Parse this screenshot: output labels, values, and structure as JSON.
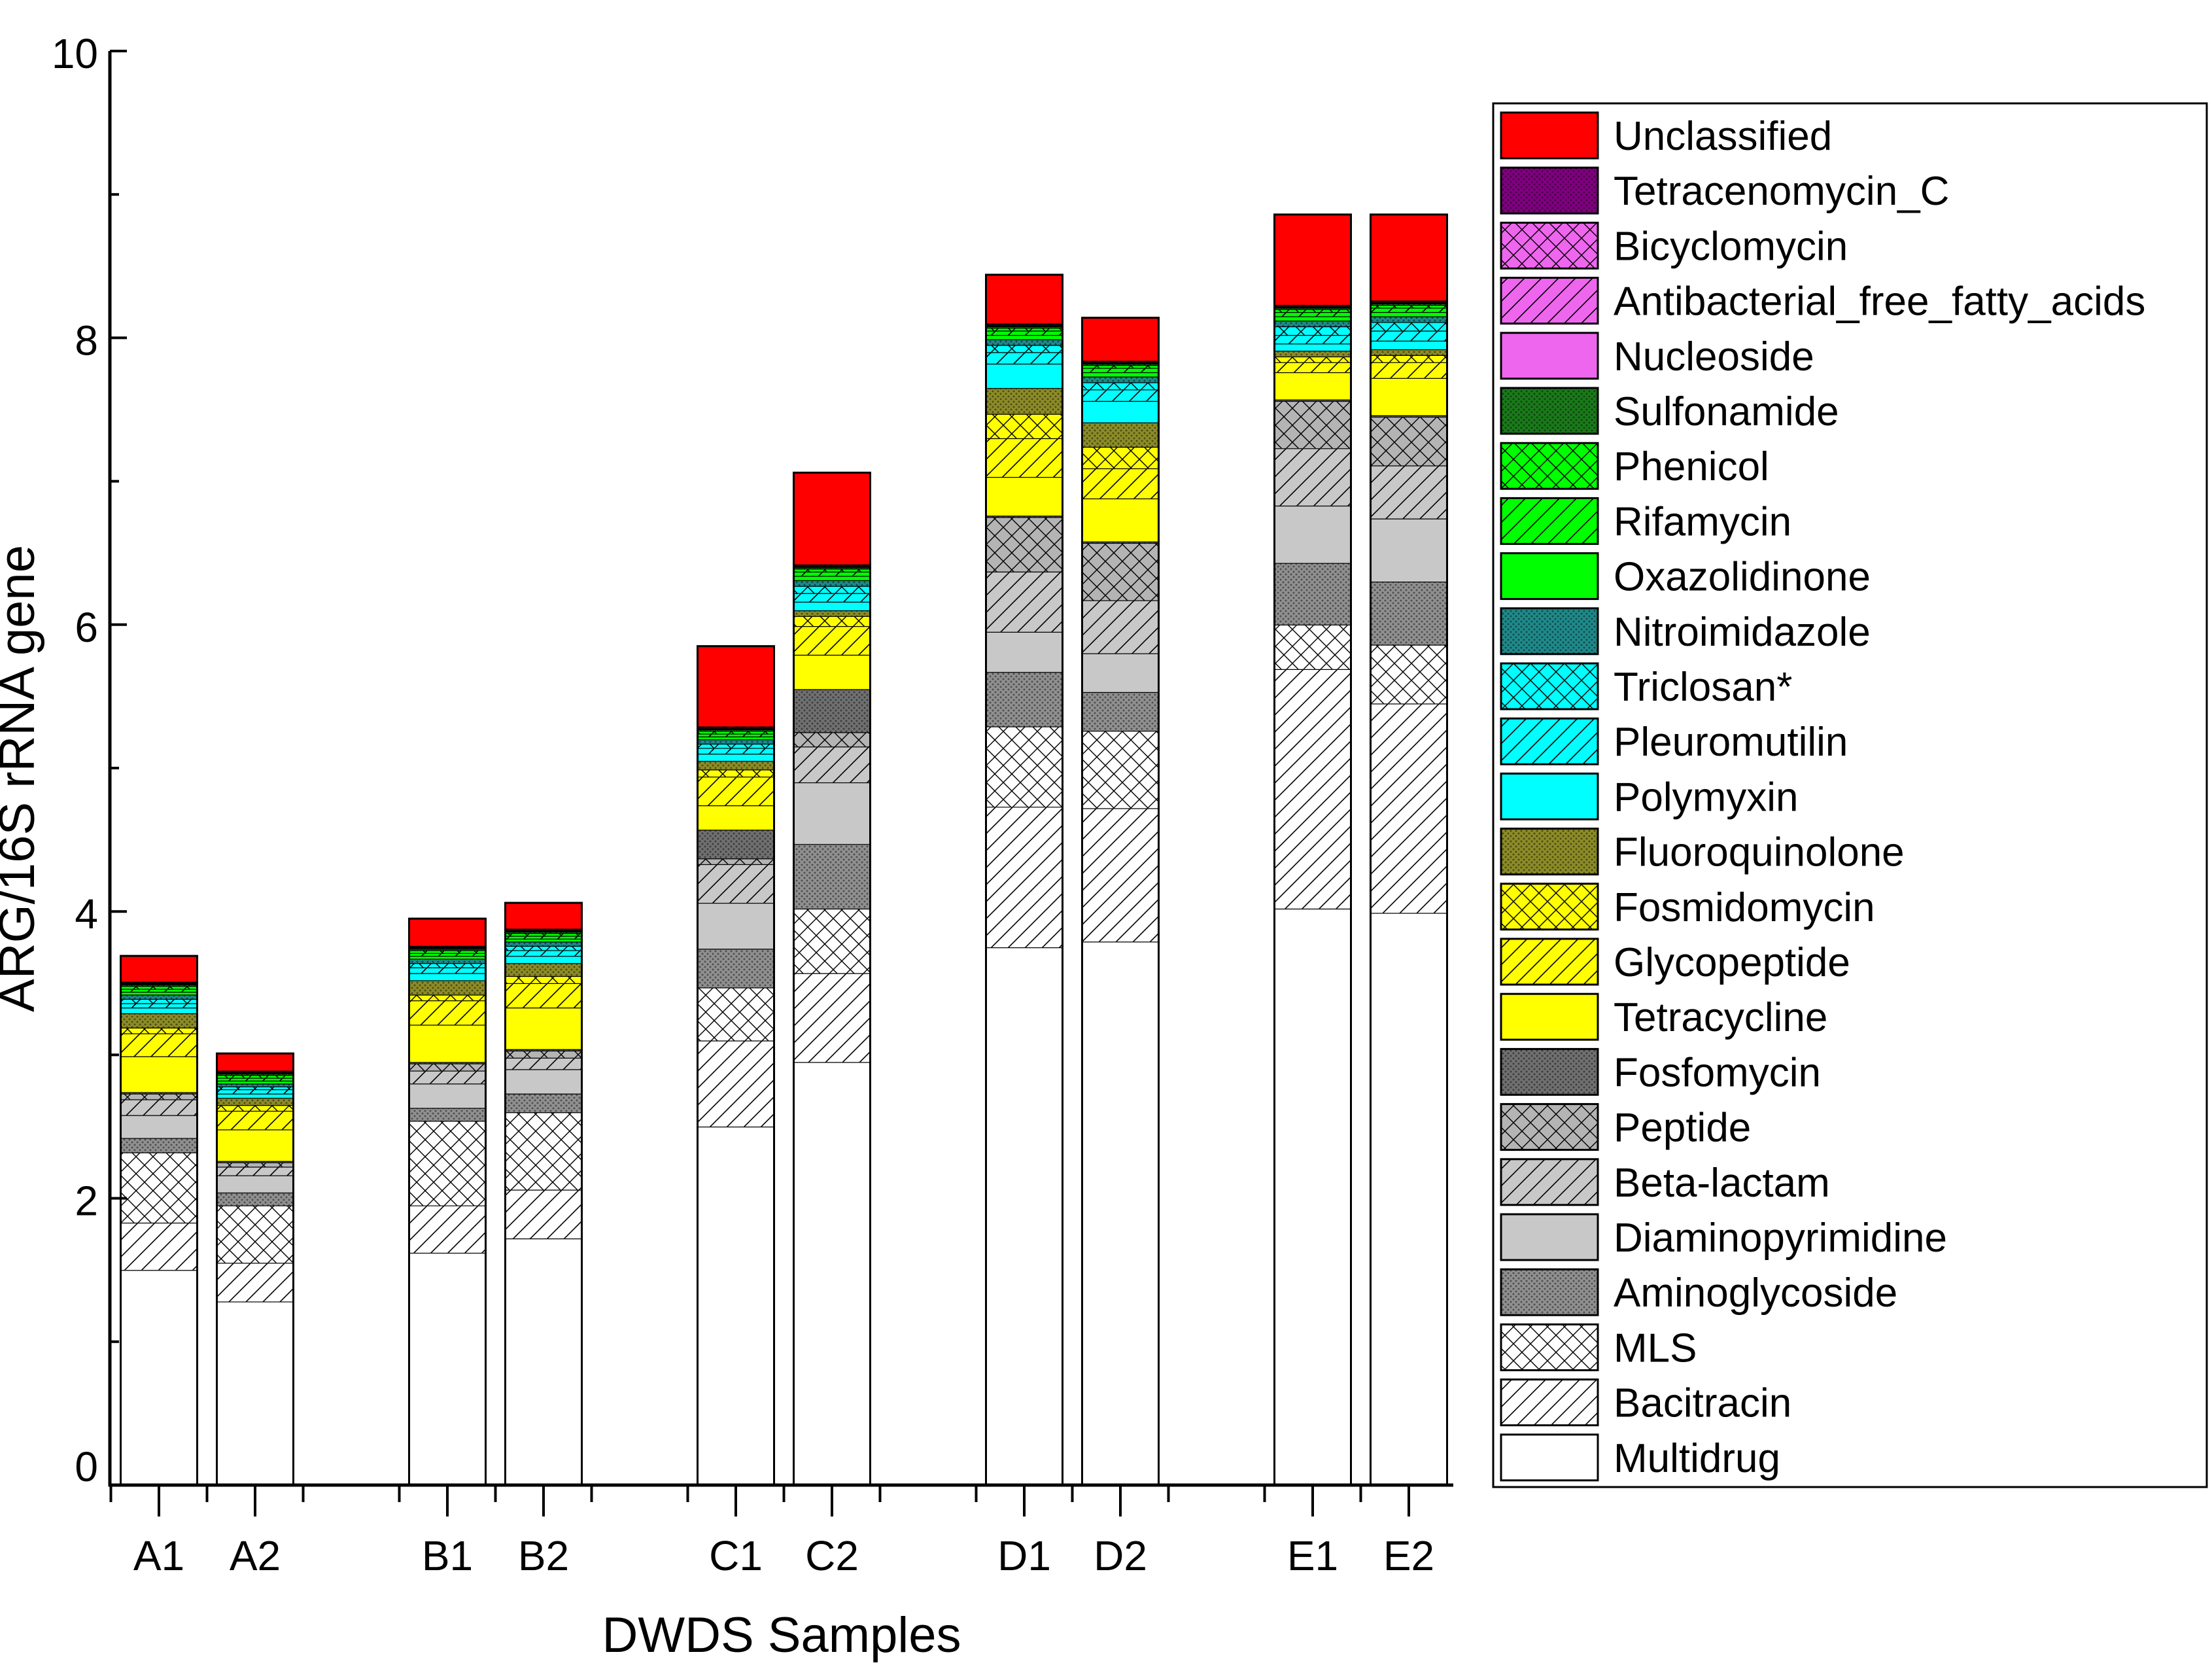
{
  "chart_data": {
    "type": "bar",
    "stacked": true,
    "title": "",
    "xlabel": "DWDS Samples",
    "ylabel": "ARG/16S rRNA gene",
    "ylim": [
      0,
      10
    ],
    "yticks": [
      0,
      2,
      4,
      6,
      8,
      10
    ],
    "grid": false,
    "legend_position": "right",
    "categories": [
      "A1",
      "A2",
      "B1",
      "B2",
      "C1",
      "C2",
      "D1",
      "D2",
      "E1",
      "E2"
    ],
    "category_groups": [
      [
        "A1",
        "A2"
      ],
      [
        "B1",
        "B2"
      ],
      [
        "C1",
        "C2"
      ],
      [
        "D1",
        "D2"
      ],
      [
        "E1",
        "E2"
      ]
    ],
    "series": [
      {
        "name": "Multidrug",
        "color": "#ffffff",
        "pattern": "none",
        "values": [
          1.5,
          1.28,
          1.62,
          1.72,
          2.5,
          2.95,
          3.75,
          3.79,
          4.02,
          3.99
        ]
      },
      {
        "name": "Bacitracin",
        "color": "#ffffff",
        "pattern": "hatch",
        "values": [
          0.33,
          0.27,
          0.33,
          0.34,
          0.6,
          0.62,
          0.98,
          0.93,
          1.67,
          1.46
        ]
      },
      {
        "name": "MLS",
        "color": "#ffffff",
        "pattern": "cross",
        "values": [
          0.49,
          0.4,
          0.59,
          0.54,
          0.37,
          0.45,
          0.56,
          0.54,
          0.31,
          0.41
        ]
      },
      {
        "name": "Aminoglycoside",
        "color": "#909090",
        "pattern": "dots",
        "values": [
          0.1,
          0.09,
          0.09,
          0.13,
          0.27,
          0.45,
          0.38,
          0.27,
          0.43,
          0.44
        ]
      },
      {
        "name": "Diaminopyrimidine",
        "color": "#c8c8c8",
        "pattern": "none",
        "values": [
          0.16,
          0.12,
          0.17,
          0.17,
          0.32,
          0.43,
          0.28,
          0.27,
          0.4,
          0.44
        ]
      },
      {
        "name": "Beta-lactam",
        "color": "#c8c8c8",
        "pattern": "hatch",
        "values": [
          0.11,
          0.06,
          0.09,
          0.08,
          0.27,
          0.25,
          0.42,
          0.37,
          0.4,
          0.37
        ]
      },
      {
        "name": "Peptide",
        "color": "#b4b4b4",
        "pattern": "cross",
        "values": [
          0.04,
          0.03,
          0.05,
          0.05,
          0.04,
          0.1,
          0.38,
          0.4,
          0.33,
          0.34
        ]
      },
      {
        "name": "Fosfomycin",
        "color": "#707070",
        "pattern": "dots",
        "values": [
          0.01,
          0.01,
          0.01,
          0.01,
          0.2,
          0.3,
          0.01,
          0.01,
          0.01,
          0.01
        ]
      },
      {
        "name": "Tetracycline",
        "color": "#ffff00",
        "pattern": "none",
        "values": [
          0.25,
          0.22,
          0.26,
          0.29,
          0.17,
          0.24,
          0.27,
          0.3,
          0.19,
          0.26
        ]
      },
      {
        "name": "Glycopeptide",
        "color": "#ffff00",
        "pattern": "hatch",
        "values": [
          0.16,
          0.13,
          0.17,
          0.17,
          0.2,
          0.2,
          0.27,
          0.21,
          0.07,
          0.11
        ]
      },
      {
        "name": "Fosmidomycin",
        "color": "#ffff00",
        "pattern": "cross",
        "values": [
          0.04,
          0.04,
          0.04,
          0.05,
          0.05,
          0.07,
          0.17,
          0.15,
          0.04,
          0.05
        ]
      },
      {
        "name": "Fluoroquinolone",
        "color": "#8c8c28",
        "pattern": "dots",
        "values": [
          0.1,
          0.05,
          0.1,
          0.09,
          0.06,
          0.04,
          0.18,
          0.17,
          0.04,
          0.04
        ]
      },
      {
        "name": "Polymyxin",
        "color": "#00ffff",
        "pattern": "none",
        "values": [
          0.04,
          0.03,
          0.05,
          0.05,
          0.05,
          0.06,
          0.17,
          0.15,
          0.05,
          0.06
        ]
      },
      {
        "name": "Pleuromutilin",
        "color": "#00ffff",
        "pattern": "hatch",
        "values": [
          0.03,
          0.03,
          0.04,
          0.04,
          0.04,
          0.06,
          0.08,
          0.08,
          0.06,
          0.07
        ]
      },
      {
        "name": "Triclosan*",
        "color": "#00ffff",
        "pattern": "cross",
        "values": [
          0.03,
          0.02,
          0.03,
          0.03,
          0.03,
          0.05,
          0.05,
          0.05,
          0.06,
          0.06
        ]
      },
      {
        "name": "Nitroimidazole",
        "color": "#1f8a8a",
        "pattern": "dots",
        "values": [
          0.03,
          0.02,
          0.03,
          0.03,
          0.03,
          0.04,
          0.04,
          0.04,
          0.04,
          0.04
        ]
      },
      {
        "name": "Oxazolidinone",
        "color": "#00ff00",
        "pattern": "none",
        "values": [
          0.02,
          0.02,
          0.02,
          0.02,
          0.02,
          0.03,
          0.03,
          0.03,
          0.03,
          0.03
        ]
      },
      {
        "name": "Rifamycin",
        "color": "#00ff00",
        "pattern": "hatch",
        "values": [
          0.02,
          0.02,
          0.02,
          0.02,
          0.02,
          0.03,
          0.03,
          0.03,
          0.03,
          0.03
        ]
      },
      {
        "name": "Phenicol",
        "color": "#00ff00",
        "pattern": "cross",
        "values": [
          0.02,
          0.02,
          0.02,
          0.02,
          0.02,
          0.02,
          0.02,
          0.02,
          0.02,
          0.02
        ]
      },
      {
        "name": "Sulfonamide",
        "color": "#1a7a1a",
        "pattern": "dots",
        "values": [
          0.01,
          0.01,
          0.01,
          0.01,
          0.01,
          0.01,
          0.01,
          0.01,
          0.01,
          0.01
        ]
      },
      {
        "name": "Nucleoside",
        "color": "#ee66ee",
        "pattern": "none",
        "values": [
          0.005,
          0.005,
          0.005,
          0.005,
          0.005,
          0.005,
          0.005,
          0.005,
          0.005,
          0.005
        ]
      },
      {
        "name": "Antibacterial_free_fatty_acids",
        "color": "#ee66ee",
        "pattern": "hatch",
        "values": [
          0.005,
          0.005,
          0.005,
          0.005,
          0.005,
          0.005,
          0.005,
          0.005,
          0.005,
          0.005
        ]
      },
      {
        "name": "Bicyclomycin",
        "color": "#ee66ee",
        "pattern": "cross",
        "values": [
          0.005,
          0.005,
          0.005,
          0.005,
          0.005,
          0.005,
          0.005,
          0.005,
          0.005,
          0.005
        ]
      },
      {
        "name": "Tetracenomycin_C",
        "color": "#800080",
        "pattern": "dots",
        "values": [
          0.005,
          0.005,
          0.005,
          0.005,
          0.005,
          0.005,
          0.005,
          0.005,
          0.005,
          0.005
        ]
      },
      {
        "name": "Unclassified",
        "color": "#ff0000",
        "pattern": "none",
        "values": [
          0.18,
          0.12,
          0.19,
          0.18,
          0.56,
          0.64,
          0.34,
          0.3,
          0.63,
          0.6
        ]
      }
    ]
  }
}
